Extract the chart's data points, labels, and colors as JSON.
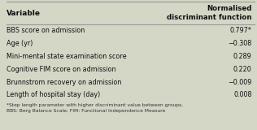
{
  "title_col1": "Variable",
  "title_col2": "Normalised\ndiscriminant function",
  "rows": [
    [
      "BBS score on admission",
      "0.797*"
    ],
    [
      "Age (yr)",
      "−0.308"
    ],
    [
      "Mini-mental state examination score",
      "0.289"
    ],
    [
      "Cognitive FIM score on admission",
      "0.220"
    ],
    [
      "Brunnstrom recovery on admission",
      "−0.009"
    ],
    [
      "Length of hospital stay (day)",
      "0.008"
    ]
  ],
  "footnote": "*Step length parameter with higher discriminant value between groups.\nBBS: Berg Balance Scale; FIM: Functional Independence Measure",
  "bg_color": "#d4d6c6",
  "header_bg": "#d4d6c6",
  "row_bg": "#d4d6c6",
  "border_color": "#999999",
  "text_color": "#111111",
  "footnote_color": "#333333",
  "outer_bg": "#d4d6c6"
}
